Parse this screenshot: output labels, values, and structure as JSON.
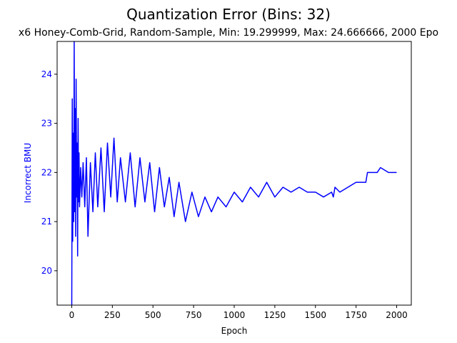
{
  "chart_data": {
    "type": "line",
    "title": "Quantization Error (Bins: 32)",
    "subtitle": "x6 Honey-Comb-Grid, Random-Sample, Min: 19.299999, Max: 24.666666, 2000 Epo",
    "xlabel": "Epoch",
    "ylabel": "Incorrect BMU",
    "xlim": [
      -90,
      2090
    ],
    "ylim": [
      19.3,
      24.667
    ],
    "x_ticks": [
      0,
      250,
      500,
      750,
      1000,
      1250,
      1500,
      1750,
      2000
    ],
    "x_tick_labels": [
      "0",
      "250",
      "500",
      "750",
      "1000",
      "1250",
      "1500",
      "1750",
      "2000"
    ],
    "y_ticks": [
      20,
      21,
      22,
      23,
      24
    ],
    "y_tick_labels": [
      "20",
      "21",
      "22",
      "23",
      "24"
    ],
    "grid": false,
    "legend": "none",
    "colors": {
      "line": "#0000ff",
      "ylabel": "#0000ff",
      "ytick": "#0000ff",
      "axis": "#000000"
    },
    "series": [
      {
        "x": [
          0,
          3,
          6,
          9,
          12,
          15,
          18,
          21,
          24,
          27,
          30,
          33,
          36,
          39,
          42,
          45,
          48,
          55,
          62,
          70,
          80,
          90,
          100,
          115,
          130,
          145,
          160,
          180,
          200,
          220,
          240,
          260,
          280,
          300,
          330,
          360,
          390,
          420,
          450,
          480,
          510,
          540,
          570,
          600,
          630,
          660,
          700,
          740,
          780,
          820,
          860,
          900,
          950,
          1000,
          1050,
          1100,
          1150,
          1200,
          1250,
          1300,
          1350,
          1400,
          1450,
          1500,
          1550,
          1600,
          1610,
          1620,
          1650,
          1700,
          1750,
          1800,
          1810,
          1820,
          1850,
          1880,
          1900,
          1950,
          2000
        ],
        "values": [
          19.3,
          23.5,
          20.6,
          22.8,
          21.0,
          24.667,
          21.2,
          23.3,
          20.7,
          23.9,
          21.5,
          22.6,
          20.3,
          23.1,
          21.4,
          22.4,
          21.3,
          22.1,
          21.5,
          22.2,
          21.3,
          22.3,
          20.7,
          22.2,
          21.2,
          22.4,
          21.3,
          22.5,
          21.2,
          22.6,
          21.5,
          22.7,
          21.4,
          22.3,
          21.4,
          22.4,
          21.3,
          22.3,
          21.4,
          22.2,
          21.2,
          22.1,
          21.3,
          21.9,
          21.1,
          21.8,
          21.0,
          21.6,
          21.1,
          21.5,
          21.2,
          21.5,
          21.3,
          21.6,
          21.4,
          21.7,
          21.5,
          21.8,
          21.5,
          21.7,
          21.6,
          21.7,
          21.6,
          21.6,
          21.5,
          21.6,
          21.5,
          21.7,
          21.6,
          21.7,
          21.8,
          21.8,
          21.8,
          22.0,
          22.0,
          22.0,
          22.1,
          22.0,
          22.0
        ]
      }
    ]
  }
}
